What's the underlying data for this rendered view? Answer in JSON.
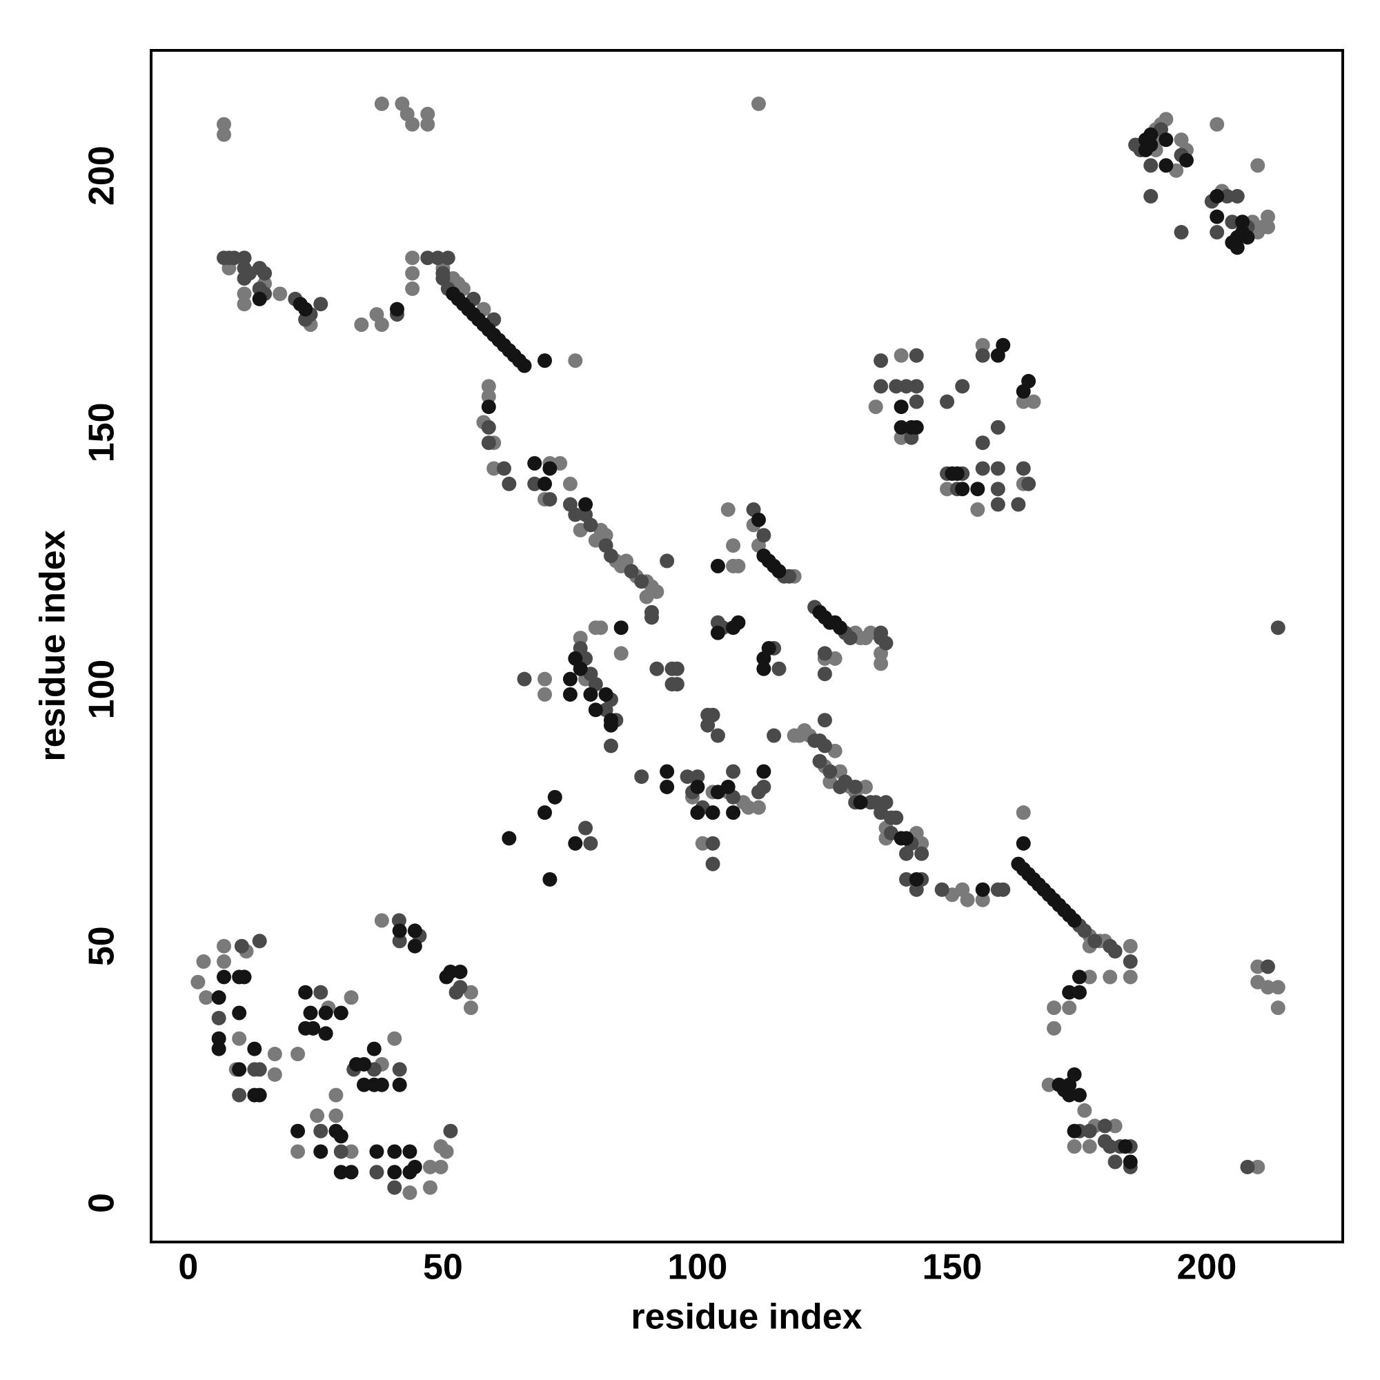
{
  "chart_data": {
    "type": "scatter",
    "xlabel": "residue index",
    "ylabel": "residue index",
    "xlim": [
      -7.3,
      226.7
    ],
    "ylim": [
      -7.6,
      224.4
    ],
    "xticks": [
      0,
      50,
      100,
      150,
      200
    ],
    "yticks": [
      0,
      50,
      100,
      150,
      200
    ],
    "series": [
      {
        "color": "#7a7a7a",
        "x": [
          1.9,
          3,
          3.5,
          7,
          7,
          10,
          9.4,
          11.4,
          17,
          17,
          21.5,
          21.5,
          25.3,
          27.5,
          29,
          29,
          32,
          32,
          38,
          38,
          40.5,
          43.5,
          47.5,
          47.5,
          49.6,
          49.6,
          50.7,
          55.5,
          55.5,
          50,
          52,
          53,
          54,
          58,
          76,
          7,
          7,
          38,
          42,
          43,
          44,
          47,
          47,
          112,
          8,
          11,
          11,
          15,
          18,
          24,
          34,
          37,
          38,
          44,
          44,
          44,
          59,
          59,
          58,
          60,
          60,
          71,
          70,
          73,
          75,
          77,
          80,
          81,
          82,
          84,
          85,
          86,
          88,
          90,
          90,
          91,
          92,
          70,
          70,
          77,
          78,
          80,
          81,
          85,
          99,
          101,
          103,
          106,
          109,
          110,
          112,
          106,
          107,
          108,
          107,
          111,
          112,
          119,
          119,
          120,
          121,
          122,
          125,
          127,
          128,
          126,
          130,
          131,
          133,
          137,
          137,
          143,
          144,
          150,
          152,
          153,
          156,
          131,
          132,
          133,
          134,
          136,
          136,
          125,
          127,
          164,
          177,
          179,
          180,
          177,
          185,
          185,
          181,
          177,
          173,
          170,
          170,
          169,
          176,
          174,
          177,
          178,
          182,
          210,
          210,
          210,
          212,
          214,
          214,
          135,
          140,
          140,
          149,
          155,
          156,
          164,
          166,
          164,
          190,
          190,
          191,
          192,
          190,
          194,
          195,
          196,
          203,
          202,
          209,
          210,
          211,
          212,
          212,
          210
        ],
        "values": [
          43,
          47,
          40,
          50,
          47,
          32,
          26,
          49,
          29,
          25,
          29,
          10,
          17,
          38,
          17,
          21,
          10,
          40,
          27,
          55,
          32,
          2,
          7,
          3,
          7,
          11,
          10,
          41,
          38,
          182,
          180,
          179,
          178,
          174,
          164,
          210,
          208,
          214,
          214,
          212,
          210,
          212,
          210,
          214,
          182,
          177,
          175,
          179,
          177,
          171,
          171,
          173,
          171,
          184,
          181,
          178,
          159,
          157,
          152,
          148,
          143,
          144,
          137,
          144,
          140,
          131,
          129,
          131,
          130,
          125,
          124,
          125,
          122,
          121,
          118,
          120,
          119,
          102,
          99,
          110,
          102,
          112,
          112,
          107,
          79,
          70,
          80,
          80,
          78,
          77,
          77,
          135,
          124,
          124,
          128,
          132,
          128,
          122,
          91,
          91,
          92,
          91,
          85,
          88,
          84,
          82,
          81,
          80,
          81,
          73,
          71,
          72,
          70,
          60,
          61,
          59,
          59,
          111,
          110,
          110,
          111,
          107,
          105,
          106,
          106,
          76,
          52,
          51,
          51,
          50,
          50,
          44,
          44,
          44,
          38,
          38,
          34,
          23,
          18,
          11,
          11,
          15,
          15,
          7,
          46,
          43,
          42,
          42,
          38,
          155,
          165,
          149,
          139,
          135,
          167,
          156,
          156,
          140,
          207,
          209,
          210,
          211,
          205,
          201,
          207,
          205,
          197,
          210,
          191,
          189,
          190,
          192,
          190,
          202
        ]
      },
      {
        "color": "#4a4a4a",
        "x": [
          6,
          10,
          10.5,
          13,
          14,
          14,
          26,
          26,
          30,
          32.5,
          36.5,
          37,
          40.5,
          41.4,
          41.5,
          41.5,
          45.4,
          51.5,
          52.6,
          53.4,
          50,
          51,
          56,
          60,
          7,
          8,
          9,
          11,
          11,
          12,
          11,
          14,
          15,
          14,
          15,
          21,
          24,
          23,
          26,
          41,
          47,
          49,
          51,
          50,
          59,
          59,
          62,
          63,
          68,
          71,
          75,
          76,
          78,
          79,
          82,
          83,
          87,
          89,
          94,
          91,
          66,
          77,
          78,
          79,
          80,
          82,
          83,
          84,
          83,
          78,
          79,
          89,
          91,
          92,
          95,
          95,
          96,
          96,
          98,
          99,
          100,
          101,
          102,
          102,
          103,
          103,
          103,
          104,
          104,
          105,
          107,
          107,
          112,
          113,
          111,
          113,
          117,
          118,
          115,
          116,
          115,
          123,
          124,
          125,
          124,
          126,
          128,
          129,
          131,
          131,
          134,
          135,
          136,
          137,
          138,
          139,
          138,
          142,
          141,
          144,
          141,
          144,
          143,
          148,
          159,
          160,
          125,
          123,
          129,
          130,
          136,
          136,
          137,
          125,
          125,
          175,
          176,
          178,
          181,
          182,
          185,
          175,
          177,
          180,
          180,
          181,
          183,
          185,
          182,
          185,
          208,
          212,
          214,
          136,
          136,
          139,
          141,
          143,
          143,
          143,
          142,
          149,
          149,
          151,
          152,
          152,
          156,
          156,
          156,
          159,
          159,
          159,
          159,
          164,
          165,
          163,
          186,
          187,
          191,
          189,
          189,
          195,
          195,
          201,
          202,
          204,
          206,
          205,
          208
        ],
        "values": [
          36,
          21,
          50,
          26,
          51,
          26,
          14,
          41,
          10,
          26,
          26,
          6,
          3,
          55,
          26,
          51,
          52,
          14,
          41,
          42,
          180,
          178,
          176,
          172,
          184,
          184,
          184,
          184,
          182,
          181,
          180,
          182,
          181,
          178,
          177,
          176,
          173,
          172,
          175,
          173,
          184,
          184,
          184,
          181,
          151,
          148,
          143,
          140,
          140,
          137,
          136,
          134,
          134,
          132,
          128,
          126,
          123,
          121,
          125,
          115,
          102,
          108,
          106,
          103,
          101,
          96,
          98,
          94,
          89,
          73,
          70,
          83,
          114,
          104,
          104,
          101,
          104,
          101,
          83,
          80,
          83,
          77,
          95,
          93,
          95,
          70,
          66,
          91,
          113,
          112,
          84,
          79,
          80,
          81,
          135,
          130,
          122,
          122,
          108,
          104,
          91,
          90,
          90,
          89,
          86,
          84,
          81,
          82,
          81,
          78,
          78,
          78,
          76,
          78,
          75,
          75,
          72,
          70,
          68,
          68,
          63,
          63,
          61,
          61,
          61,
          61,
          94,
          116,
          111,
          110,
          110,
          111,
          109,
          107,
          103,
          54,
          53,
          51,
          50,
          49,
          47,
          14,
          14,
          15,
          12,
          11,
          11,
          11,
          8,
          7,
          7,
          46,
          112,
          164,
          159,
          159,
          159,
          165,
          159,
          156,
          149,
          156,
          142,
          139,
          142,
          159,
          148,
          143,
          165,
          151,
          143,
          139,
          136,
          143,
          140,
          136,
          206,
          205,
          209,
          202,
          196,
          204,
          189,
          195,
          189,
          196,
          196,
          191,
          190
        ]
      },
      {
        "color": "#141414",
        "x": [
          6,
          7,
          6,
          6,
          10,
          10,
          10,
          11,
          13,
          13,
          14,
          21.5,
          23,
          23,
          24,
          24.5,
          26,
          27,
          27,
          29,
          30,
          30,
          30,
          32,
          33,
          34.5,
          34.5,
          36.5,
          36.5,
          37,
          38,
          40.5,
          40.5,
          41.5,
          41.5,
          43.5,
          43.5,
          44.5,
          44.5,
          44.5,
          50.7,
          51.5,
          53.4,
          52,
          53,
          54,
          55,
          56,
          57,
          58,
          59,
          60,
          61,
          62,
          63,
          64,
          65,
          66,
          70,
          14,
          22,
          23,
          41,
          59,
          68,
          70,
          71,
          78,
          75,
          75,
          76,
          77,
          79,
          80,
          82,
          83,
          85,
          83,
          63,
          70,
          71,
          72,
          76,
          94,
          94,
          100,
          100,
          103,
          104,
          104,
          106,
          107,
          107,
          108,
          113,
          104,
          112,
          113,
          114,
          115,
          116,
          113,
          114,
          113,
          132,
          140,
          141,
          143,
          156,
          124,
          125,
          126,
          127,
          128,
          164,
          163,
          164,
          165,
          166,
          167,
          168,
          169,
          170,
          171,
          172,
          173,
          174,
          175,
          175,
          173,
          171,
          172,
          173,
          173,
          174,
          175,
          174,
          184,
          185,
          140,
          140,
          142,
          143,
          150,
          151,
          152,
          155,
          159,
          160,
          164,
          165,
          188,
          189,
          189,
          188,
          192,
          192,
          196,
          202,
          202,
          206,
          205,
          206,
          207,
          207,
          208
        ],
        "values": [
          40,
          44,
          32,
          30,
          44,
          37,
          26,
          44,
          30,
          21,
          21,
          14,
          41,
          34,
          37,
          34,
          10,
          37,
          33,
          14,
          37,
          13,
          6,
          6,
          27,
          23,
          27,
          30,
          23,
          10,
          23,
          6,
          10,
          53,
          23,
          6,
          10,
          7,
          50,
          53,
          44,
          45,
          45,
          177,
          176,
          175,
          174,
          173,
          172,
          171,
          170,
          169,
          168,
          167,
          166,
          165,
          164,
          163,
          164,
          176,
          175,
          174,
          174,
          155,
          144,
          140,
          143,
          136,
          102,
          99,
          106,
          104,
          99,
          96,
          99,
          94,
          112,
          93,
          71,
          76,
          63,
          79,
          70,
          84,
          81,
          81,
          76,
          76,
          80,
          111,
          81,
          76,
          112,
          113,
          84,
          124,
          133,
          126,
          125,
          124,
          123,
          106,
          108,
          104,
          78,
          71,
          71,
          63,
          61,
          115,
          114,
          113,
          113,
          112,
          70,
          66,
          65,
          64,
          63,
          62,
          61,
          60,
          59,
          58,
          57,
          56,
          55,
          44,
          41,
          41,
          23,
          22,
          23,
          21,
          25,
          21,
          14,
          11,
          8,
          155,
          151,
          151,
          151,
          142,
          142,
          139,
          139,
          165,
          167,
          158,
          160,
          207,
          208,
          206,
          205,
          207,
          202,
          203,
          196,
          192,
          188,
          187,
          186,
          189,
          191,
          188
        ]
      }
    ]
  }
}
